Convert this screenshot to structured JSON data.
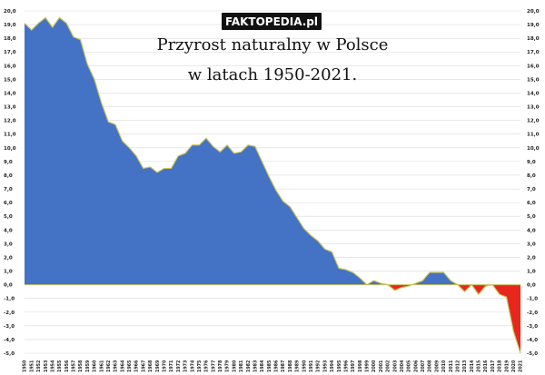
{
  "watermark": "FAKTOPEDIA.pl",
  "colors": {
    "positive": "#4472c4",
    "negative": "#e8261c",
    "outline": "#c9c25a",
    "grid": "#d9d9d9",
    "logo_bg": "#111111"
  },
  "chart_data": {
    "type": "area",
    "title_lines": [
      "Przyrost naturalny w Polsce",
      "w latach 1950-2021."
    ],
    "xlabel": "",
    "ylabel": "",
    "ylim": [
      -5.0,
      20.0
    ],
    "ytick_step": 1.0,
    "grid": true,
    "x": [
      1950,
      1951,
      1952,
      1953,
      1954,
      1955,
      1956,
      1957,
      1958,
      1959,
      1960,
      1961,
      1962,
      1963,
      1964,
      1965,
      1966,
      1967,
      1968,
      1969,
      1970,
      1971,
      1972,
      1973,
      1974,
      1975,
      1976,
      1977,
      1978,
      1979,
      1980,
      1981,
      1982,
      1983,
      1984,
      1985,
      1986,
      1987,
      1988,
      1989,
      1990,
      1991,
      1992,
      1993,
      1994,
      1995,
      1996,
      1997,
      1998,
      1999,
      2000,
      2001,
      2002,
      2003,
      2004,
      2005,
      2006,
      2007,
      2008,
      2009,
      2010,
      2011,
      2012,
      2013,
      2014,
      2015,
      2016,
      2017,
      2018,
      2019,
      2020,
      2021
    ],
    "values": [
      19.1,
      18.6,
      19.1,
      19.5,
      18.8,
      19.5,
      19.1,
      18.1,
      17.9,
      16.1,
      15.0,
      13.3,
      11.9,
      11.7,
      10.5,
      10.0,
      9.4,
      8.5,
      8.6,
      8.2,
      8.5,
      8.5,
      9.4,
      9.6,
      10.2,
      10.2,
      10.7,
      10.1,
      9.7,
      10.2,
      9.6,
      9.7,
      10.2,
      10.1,
      9.0,
      7.9,
      6.9,
      6.1,
      5.7,
      4.9,
      4.1,
      3.6,
      3.2,
      2.6,
      2.4,
      1.2,
      1.1,
      0.9,
      0.5,
      0.0,
      0.3,
      0.1,
      -0.0,
      -0.4,
      -0.2,
      -0.1,
      0.1,
      0.3,
      0.9,
      0.9,
      0.9,
      0.3,
      0.0,
      -0.5,
      0.0,
      -0.7,
      -0.1,
      0.0,
      -0.7,
      -0.9,
      -3.4,
      -5.0
    ]
  }
}
